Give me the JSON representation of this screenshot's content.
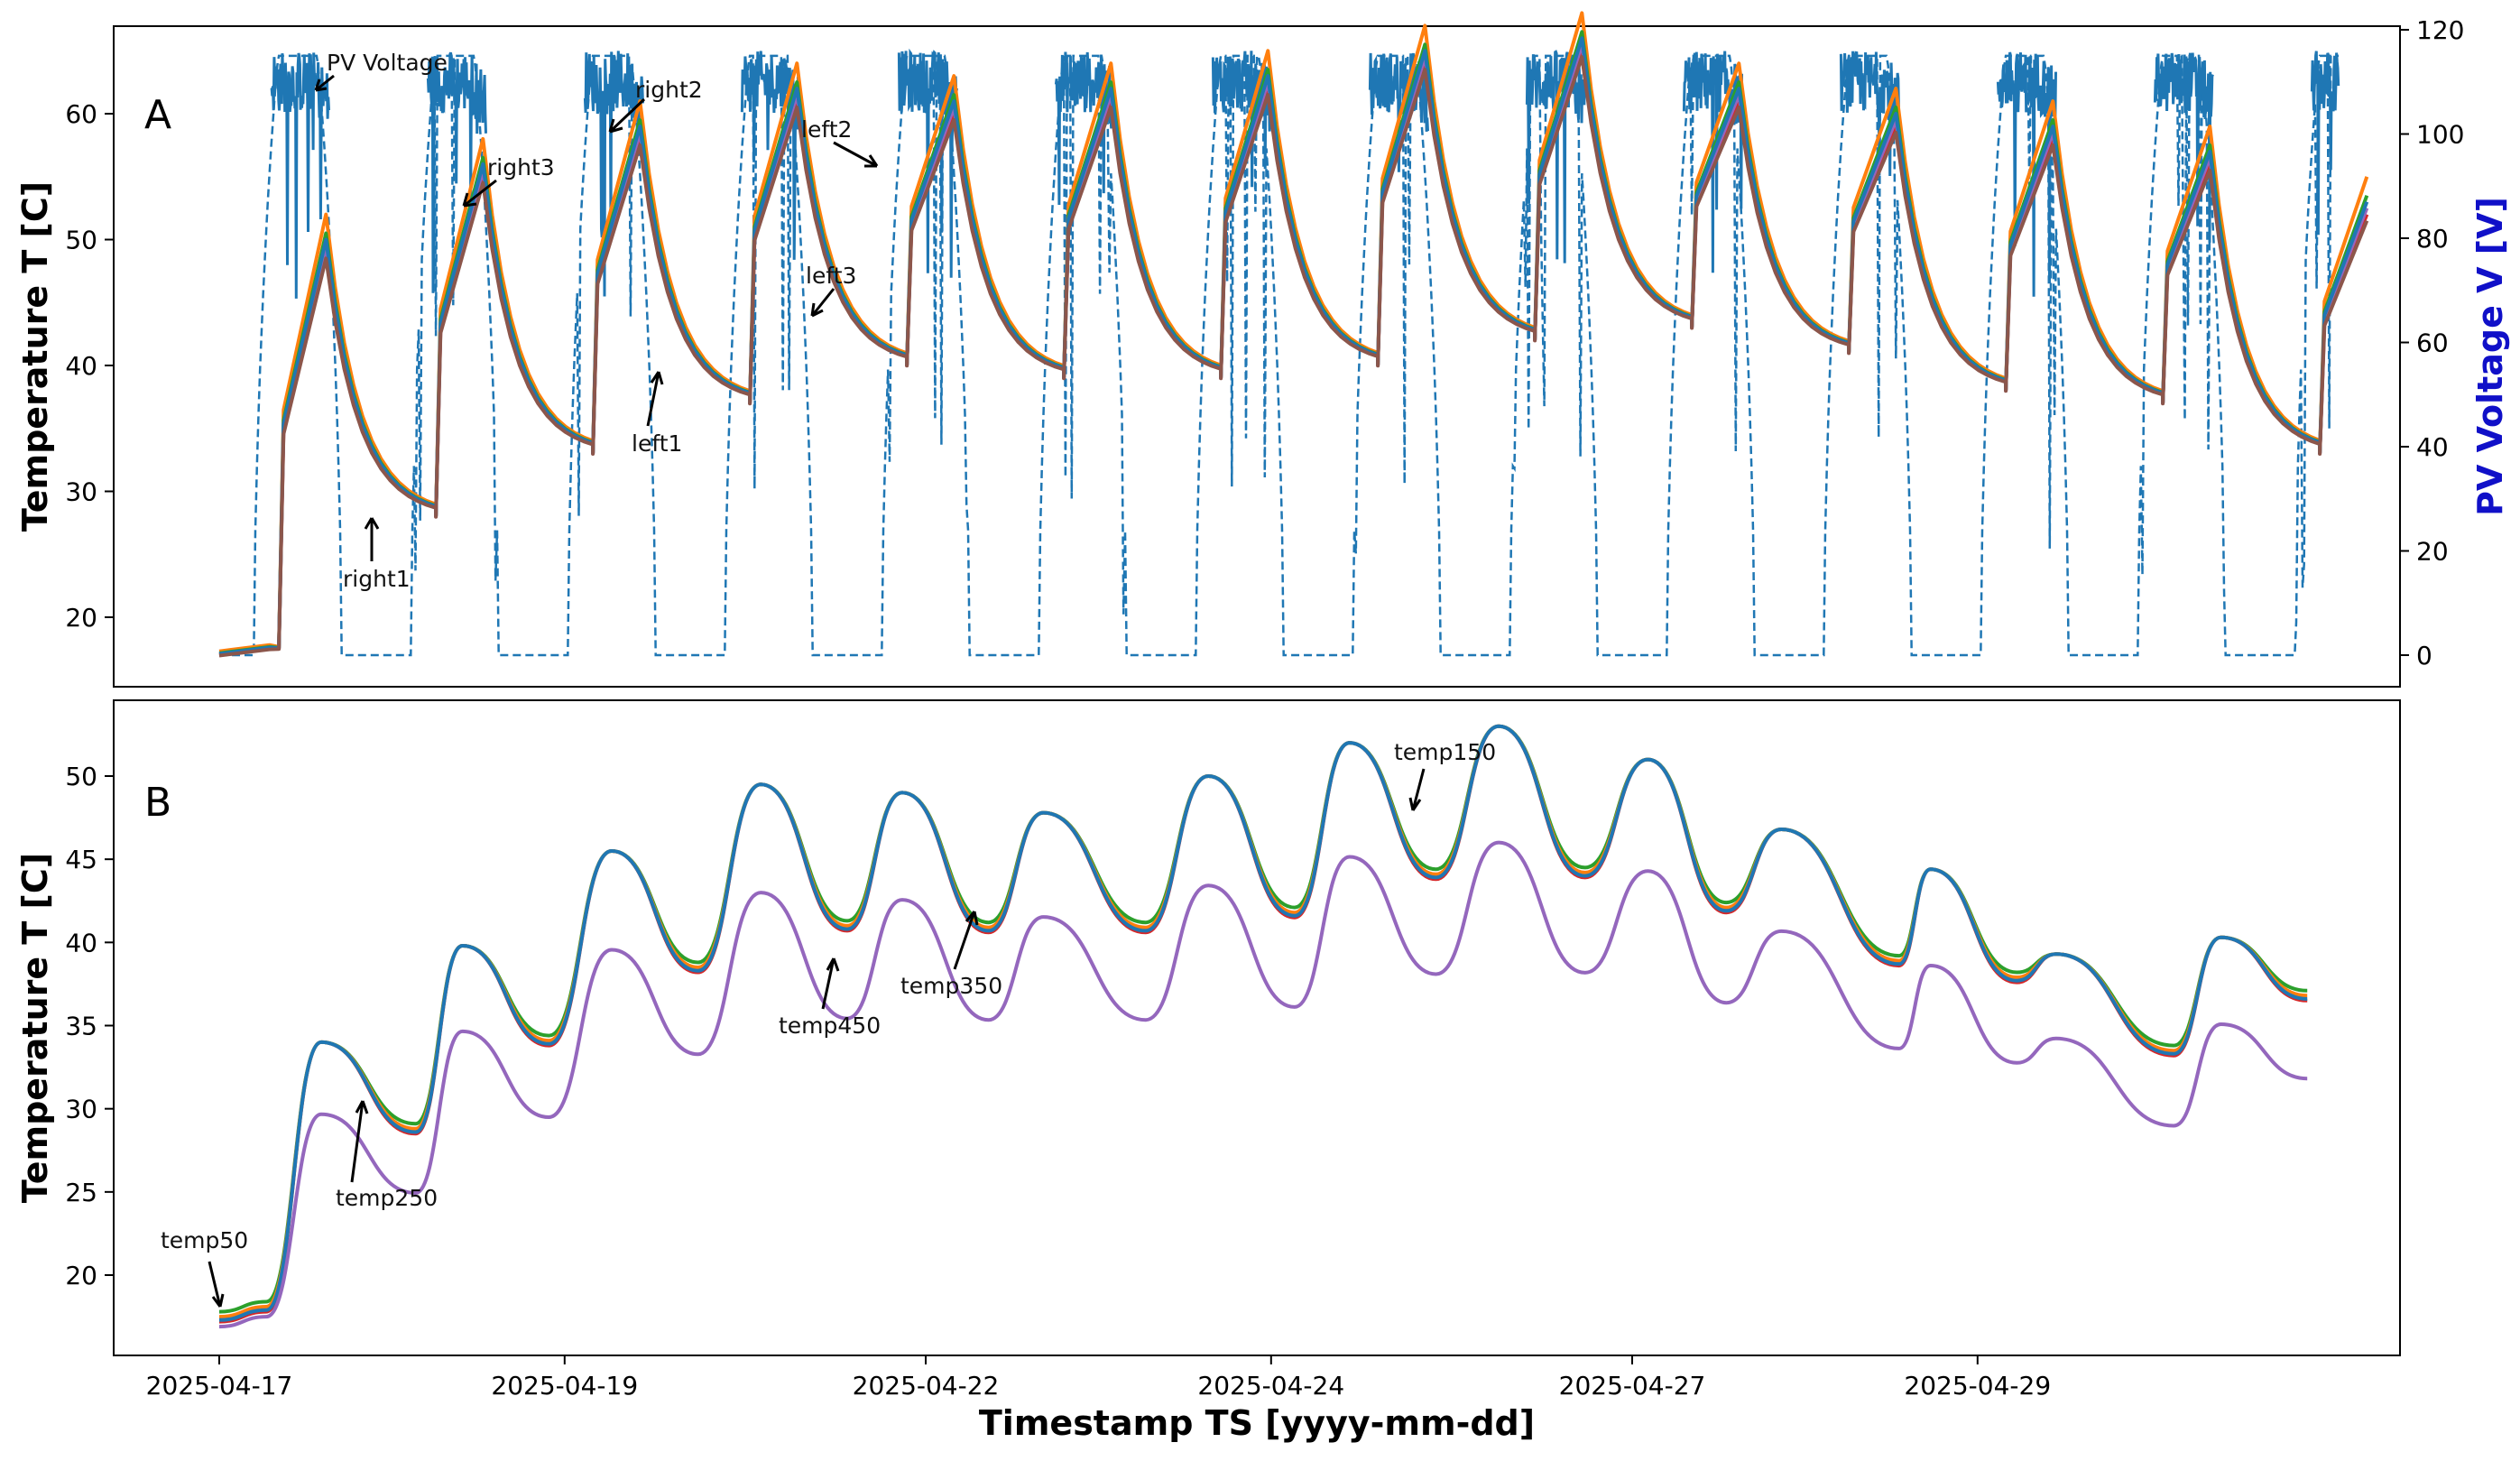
{
  "chart_data": [
    {
      "panel": "A",
      "type": "line",
      "ylabel": "Temperature T [C]",
      "ylim": [
        15,
        66
      ],
      "yticks": [
        20,
        30,
        40,
        50,
        60
      ],
      "y2label": "PV Voltage V [V]",
      "y2lim": [
        -6,
        121
      ],
      "y2ticks": [
        0,
        20,
        40,
        60,
        80,
        100,
        120
      ],
      "x_start_day": 0,
      "x_end_day": 13.5,
      "day_peaks": [
        {
          "day": 0,
          "night": 28,
          "max": 49
        },
        {
          "day": 1,
          "night": 33,
          "max": 55
        },
        {
          "day": 2,
          "night": 37,
          "max": 58
        },
        {
          "day": 3,
          "night": 40,
          "max": 61
        },
        {
          "day": 4,
          "night": 39,
          "max": 60
        },
        {
          "day": 5,
          "night": 39,
          "max": 61
        },
        {
          "day": 6,
          "night": 40,
          "max": 62
        },
        {
          "day": 7,
          "night": 42,
          "max": 64
        },
        {
          "day": 8,
          "night": 43,
          "max": 65
        },
        {
          "day": 9,
          "night": 41,
          "max": 61
        },
        {
          "day": 10,
          "night": 38,
          "max": 59
        },
        {
          "day": 11,
          "night": 37,
          "max": 58
        },
        {
          "day": 12,
          "night": 33,
          "max": 56
        },
        {
          "day": 13,
          "night": 35,
          "max": 52
        }
      ],
      "series": [
        {
          "name": "right1",
          "color": "#d62728",
          "offset": 0
        },
        {
          "name": "right2",
          "color": "#ff7f0e",
          "offset": 3
        },
        {
          "name": "right3",
          "color": "#2ca02c",
          "offset": 1.5
        },
        {
          "name": "left1",
          "color": "#9467bd",
          "offset": 0.5
        },
        {
          "name": "left2",
          "color": "#1f77b4",
          "offset": 1
        },
        {
          "name": "left3",
          "color": "#8c564b",
          "offset": -0.5
        }
      ],
      "pv_voltage": {
        "name": "PV Voltage",
        "color": "#1f77b4",
        "max": 115,
        "night": 0
      },
      "annotations": [
        "PV Voltage",
        "right1",
        "right2",
        "right3",
        "left1",
        "left2",
        "left3"
      ]
    },
    {
      "panel": "B",
      "type": "line",
      "ylabel": "Temperature T [C]",
      "ylim": [
        15,
        54
      ],
      "yticks": [
        20,
        25,
        30,
        35,
        40,
        45,
        50
      ],
      "xlabel": "Timestamp TS [yyyy-mm-dd]",
      "x_tick_labels": [
        "2025-04-17",
        "2025-04-19",
        "2025-04-22",
        "2025-04-24",
        "2025-04-27",
        "2025-04-29"
      ],
      "x_tick_days": [
        0,
        2.2,
        4.5,
        6.7,
        9.0,
        11.2
      ],
      "cycle_points": [
        {
          "day": 0.0,
          "value": 17.2
        },
        {
          "day": 0.3,
          "value": 17.8
        },
        {
          "day": 0.65,
          "value": 34.0
        },
        {
          "day": 1.25,
          "value": 28.5
        },
        {
          "day": 1.55,
          "value": 39.8
        },
        {
          "day": 2.1,
          "value": 33.8
        },
        {
          "day": 2.5,
          "value": 45.5
        },
        {
          "day": 3.05,
          "value": 38.2
        },
        {
          "day": 3.45,
          "value": 49.5
        },
        {
          "day": 4.0,
          "value": 40.7
        },
        {
          "day": 4.35,
          "value": 49.0
        },
        {
          "day": 4.9,
          "value": 40.6
        },
        {
          "day": 5.25,
          "value": 47.8
        },
        {
          "day": 5.9,
          "value": 40.6
        },
        {
          "day": 6.3,
          "value": 50.0
        },
        {
          "day": 6.85,
          "value": 41.5
        },
        {
          "day": 7.2,
          "value": 52.0
        },
        {
          "day": 7.75,
          "value": 43.8
        },
        {
          "day": 8.15,
          "value": 53.0
        },
        {
          "day": 8.7,
          "value": 43.9
        },
        {
          "day": 9.1,
          "value": 51.0
        },
        {
          "day": 9.6,
          "value": 41.8
        },
        {
          "day": 9.95,
          "value": 46.8
        },
        {
          "day": 10.7,
          "value": 38.6
        },
        {
          "day": 10.9,
          "value": 44.4
        },
        {
          "day": 11.45,
          "value": 37.6
        },
        {
          "day": 11.7,
          "value": 39.3
        },
        {
          "day": 12.45,
          "value": 33.2
        },
        {
          "day": 12.75,
          "value": 40.3
        },
        {
          "day": 13.3,
          "value": 36.5
        }
      ],
      "series": [
        {
          "name": "temp50",
          "color": "#d62728",
          "offset": 0
        },
        {
          "name": "temp150",
          "color": "#2ca02c",
          "offset": 0.6
        },
        {
          "name": "temp250",
          "color": "#ff7f0e",
          "offset": 0.3
        },
        {
          "name": "temp350",
          "color": "#1f77b4",
          "offset": 0.1
        },
        {
          "name": "temp450",
          "color": "#9467bd",
          "offset": -4.5
        }
      ],
      "annotations": [
        "temp50",
        "temp150",
        "temp250",
        "temp350",
        "temp450"
      ]
    }
  ],
  "labels": {
    "panelA": "A",
    "panelB": "B",
    "ylabelA": "Temperature T [C]",
    "ylabelB": "Temperature T [C]",
    "y2label": "PV Voltage V [V]",
    "xlabel": "Timestamp TS [yyyy-mm-dd]",
    "ann_pv": "PV Voltage",
    "ann_right1": "right1",
    "ann_right2": "right2",
    "ann_right3": "right3",
    "ann_left1": "left1",
    "ann_left2": "left2",
    "ann_left3": "left3",
    "ann_temp50": "temp50",
    "ann_temp150": "temp150",
    "ann_temp250": "temp250",
    "ann_temp350": "temp350",
    "ann_temp450": "temp450"
  }
}
